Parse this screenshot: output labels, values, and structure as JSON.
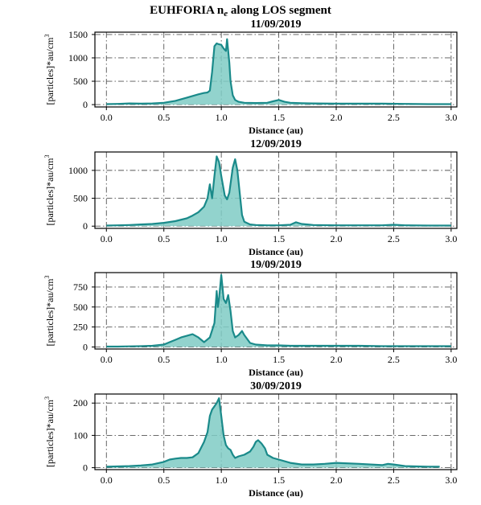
{
  "figure": {
    "suptitle_main": "EUHFORIA n",
    "suptitle_sub": "e",
    "suptitle_rest": " along LOS segment"
  },
  "chart_data": [
    {
      "type": "area",
      "title": "11/09/2019",
      "xlabel": "Distance (au)",
      "ylabel_main": "[particles]*au/cm",
      "ylabel_sup": "3",
      "xlim": [
        -0.1,
        3.05
      ],
      "ylim": [
        -50,
        1550
      ],
      "xticks": [
        0.0,
        0.5,
        1.0,
        1.5,
        2.0,
        2.5,
        3.0
      ],
      "xtick_labels": [
        "0.0",
        "0.5",
        "1.0",
        "1.5",
        "2.0",
        "2.5",
        "3.0"
      ],
      "yticks": [
        0,
        500,
        1000,
        1500
      ],
      "ytick_labels": [
        "0",
        "500",
        "1000",
        "1500"
      ],
      "grid": true,
      "color": "#1a8a8a",
      "fill_color": "#7fcbc4",
      "series": [
        {
          "x": [
            0.0,
            0.1,
            0.2,
            0.3,
            0.4,
            0.5,
            0.6,
            0.7,
            0.8,
            0.85,
            0.88,
            0.9,
            0.92,
            0.94,
            0.96,
            0.98,
            1.0,
            1.02,
            1.04,
            1.05,
            1.06,
            1.07,
            1.08,
            1.1,
            1.12,
            1.15,
            1.2,
            1.3,
            1.4,
            1.45,
            1.5,
            1.55,
            1.6,
            1.7,
            1.8,
            2.0,
            2.2,
            2.4,
            2.6,
            2.8,
            3.0
          ],
          "y": [
            10,
            15,
            25,
            20,
            25,
            40,
            80,
            150,
            220,
            250,
            260,
            300,
            700,
            1250,
            1310,
            1290,
            1280,
            1200,
            1150,
            1400,
            1150,
            900,
            500,
            200,
            100,
            60,
            40,
            35,
            40,
            70,
            100,
            60,
            40,
            30,
            25,
            20,
            20,
            20,
            15,
            10,
            10
          ]
        }
      ]
    },
    {
      "type": "area",
      "title": "12/09/2019",
      "xlabel": "Distance (au)",
      "ylabel_main": "[particles]*au/cm",
      "ylabel_sup": "3",
      "xlim": [
        -0.1,
        3.05
      ],
      "ylim": [
        -40,
        1330
      ],
      "xticks": [
        0.0,
        0.5,
        1.0,
        1.5,
        2.0,
        2.5,
        3.0
      ],
      "xtick_labels": [
        "0.0",
        "0.5",
        "1.0",
        "1.5",
        "2.0",
        "2.5",
        "3.0"
      ],
      "yticks": [
        0,
        500,
        1000
      ],
      "ytick_labels": [
        "0",
        "500",
        "1000"
      ],
      "grid": true,
      "color": "#1a8a8a",
      "fill_color": "#7fcbc4",
      "series": [
        {
          "x": [
            0.0,
            0.1,
            0.2,
            0.3,
            0.4,
            0.5,
            0.6,
            0.7,
            0.75,
            0.8,
            0.85,
            0.88,
            0.9,
            0.92,
            0.94,
            0.96,
            0.98,
            1.0,
            1.03,
            1.05,
            1.07,
            1.1,
            1.12,
            1.14,
            1.16,
            1.18,
            1.2,
            1.25,
            1.3,
            1.4,
            1.5,
            1.6,
            1.65,
            1.7,
            1.8,
            2.0,
            2.2,
            2.4,
            2.5,
            2.6,
            2.8,
            3.0
          ],
          "y": [
            10,
            15,
            20,
            30,
            40,
            60,
            90,
            140,
            190,
            250,
            350,
            500,
            750,
            500,
            900,
            1250,
            1150,
            900,
            550,
            480,
            600,
            1050,
            1200,
            1000,
            600,
            200,
            80,
            30,
            20,
            15,
            15,
            25,
            70,
            40,
            20,
            15,
            15,
            15,
            25,
            15,
            10,
            10
          ]
        }
      ]
    },
    {
      "type": "area",
      "title": "19/09/2019",
      "xlabel": "Distance (au)",
      "ylabel_main": "[particles]*au/cm",
      "ylabel_sup": "3",
      "xlim": [
        -0.1,
        3.05
      ],
      "ylim": [
        -25,
        930
      ],
      "xticks": [
        0.0,
        0.5,
        1.0,
        1.5,
        2.0,
        2.5,
        3.0
      ],
      "xtick_labels": [
        "0.0",
        "0.5",
        "1.0",
        "1.5",
        "2.0",
        "2.5",
        "3.0"
      ],
      "yticks": [
        0,
        250,
        500,
        750
      ],
      "ytick_labels": [
        "0",
        "250",
        "500",
        "750"
      ],
      "grid": true,
      "color": "#1a8a8a",
      "fill_color": "#7fcbc4",
      "series": [
        {
          "x": [
            0.0,
            0.1,
            0.2,
            0.3,
            0.4,
            0.5,
            0.55,
            0.6,
            0.65,
            0.7,
            0.75,
            0.8,
            0.85,
            0.9,
            0.94,
            0.96,
            0.97,
            0.98,
            1.0,
            1.01,
            1.02,
            1.04,
            1.06,
            1.08,
            1.1,
            1.12,
            1.15,
            1.18,
            1.2,
            1.25,
            1.3,
            1.4,
            1.5,
            1.6,
            1.8,
            2.0,
            2.2,
            2.4,
            2.6,
            2.8,
            3.0
          ],
          "y": [
            5,
            5,
            8,
            10,
            15,
            30,
            60,
            90,
            120,
            140,
            160,
            120,
            60,
            120,
            300,
            700,
            500,
            600,
            900,
            750,
            600,
            550,
            650,
            450,
            200,
            120,
            150,
            200,
            150,
            50,
            30,
            20,
            20,
            15,
            15,
            15,
            15,
            10,
            10,
            10,
            10
          ]
        }
      ]
    },
    {
      "type": "area",
      "title": "30/09/2019",
      "xlabel": "Distance (au)",
      "ylabel_main": "[particles]*au/cm",
      "ylabel_sup": "3",
      "xlim": [
        -0.1,
        3.05
      ],
      "ylim": [
        -6,
        228
      ],
      "xticks": [
        0.0,
        0.5,
        1.0,
        1.5,
        2.0,
        2.5,
        3.0
      ],
      "xtick_labels": [
        "0.0",
        "0.5",
        "1.0",
        "1.5",
        "2.0",
        "2.5",
        "3.0"
      ],
      "yticks": [
        0,
        100,
        200
      ],
      "ytick_labels": [
        "0",
        "100",
        "200"
      ],
      "grid": true,
      "color": "#1a8a8a",
      "fill_color": "#7fcbc4",
      "series": [
        {
          "x": [
            0.0,
            0.1,
            0.2,
            0.3,
            0.4,
            0.5,
            0.55,
            0.6,
            0.65,
            0.7,
            0.75,
            0.8,
            0.85,
            0.88,
            0.9,
            0.92,
            0.94,
            0.96,
            0.98,
            1.0,
            1.02,
            1.04,
            1.06,
            1.08,
            1.1,
            1.12,
            1.15,
            1.2,
            1.25,
            1.28,
            1.3,
            1.32,
            1.35,
            1.38,
            1.4,
            1.45,
            1.5,
            1.6,
            1.7,
            1.8,
            1.9,
            2.0,
            2.2,
            2.4,
            2.45,
            2.5,
            2.6,
            2.8,
            2.9
          ],
          "y": [
            3,
            4,
            5,
            7,
            10,
            18,
            25,
            28,
            30,
            30,
            32,
            45,
            80,
            110,
            160,
            180,
            190,
            200,
            215,
            160,
            100,
            70,
            60,
            55,
            40,
            30,
            35,
            40,
            50,
            65,
            80,
            85,
            75,
            60,
            40,
            30,
            25,
            15,
            10,
            10,
            12,
            15,
            12,
            8,
            12,
            10,
            5,
            3,
            3
          ]
        }
      ]
    }
  ]
}
